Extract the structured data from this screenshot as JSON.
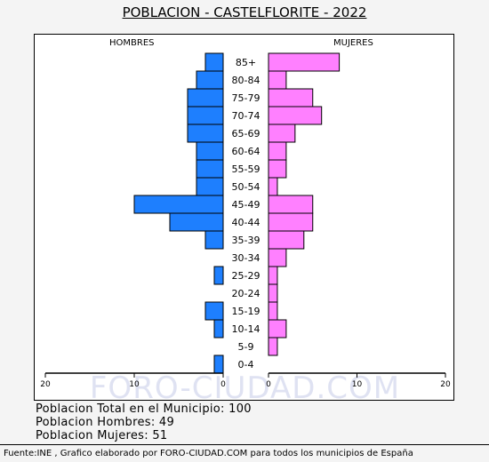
{
  "title": "POBLACION - CASTELFLORITE - 2022",
  "left_label": "HOMBRES",
  "right_label": "MUJERES",
  "watermark": "FORO-CIUDAD.COM",
  "summary": {
    "total": "Poblacion Total en el Municipio: 100",
    "men": "Poblacion Hombres: 49",
    "women": "Poblacion Mujeres: 51"
  },
  "footer": "Fuente:INE , Grafico elaborado por FORO-CIUDAD.COM para todos los municipios de España",
  "colors": {
    "men": "#1e7ffe",
    "women": "#ff80ff",
    "outline": "#000000"
  },
  "chart_data": {
    "type": "bar",
    "orientation": "horizontal-pyramid",
    "categories": [
      "85+",
      "80-84",
      "75-79",
      "70-74",
      "65-69",
      "60-64",
      "55-59",
      "50-54",
      "45-49",
      "40-44",
      "35-39",
      "30-34",
      "25-29",
      "20-24",
      "15-19",
      "10-14",
      "5-9",
      "0-4"
    ],
    "series": [
      {
        "name": "HOMBRES",
        "values": [
          2,
          3,
          4,
          4,
          4,
          3,
          3,
          3,
          10,
          6,
          2,
          0,
          1,
          0,
          2,
          1,
          0,
          1
        ]
      },
      {
        "name": "MUJERES",
        "values": [
          8,
          2,
          5,
          6,
          3,
          2,
          2,
          1,
          5,
          5,
          4,
          2,
          1,
          1,
          1,
          2,
          1,
          0
        ]
      }
    ],
    "x_ticks_left": [
      "20",
      "10",
      "0"
    ],
    "x_ticks_right": [
      "0",
      "10",
      "20"
    ],
    "xlim": [
      0,
      20
    ]
  }
}
